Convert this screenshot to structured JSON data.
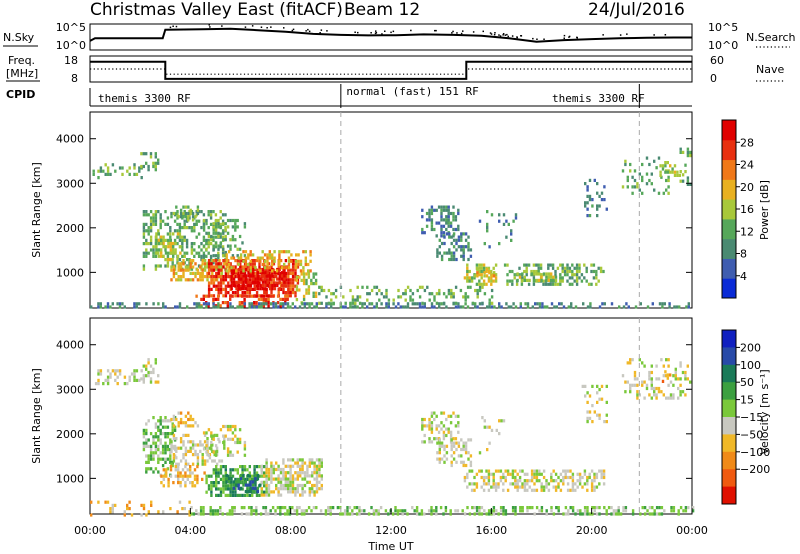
{
  "header": {
    "title": "Christmas Valley East (fitACF)",
    "beam": "Beam 12",
    "date": "24/Jul/2016"
  },
  "colors": {
    "power": [
      "#0a2bd6",
      "#3f5db0",
      "#4a8a72",
      "#56a75a",
      "#a8c83a",
      "#e8b020",
      "#f07818",
      "#e83010",
      "#e00000"
    ],
    "velocity": [
      "#e01000",
      "#f05a10",
      "#f08a18",
      "#f0b828",
      "#c8c8c0",
      "#7ac83a",
      "#3ca040",
      "#1a7a58",
      "#284aa8",
      "#1020c0"
    ]
  },
  "chart_data": [
    {
      "type": "line",
      "name": "N.Sky / N.Search",
      "left_label": "N.Sky",
      "right_label": "N.Search",
      "left_ticks": [
        "10^5",
        "10^0"
      ],
      "right_ticks": [
        "10^5",
        "10^0"
      ],
      "x": [
        0,
        0.2,
        2.9,
        3.0,
        4.5,
        5.6,
        6.7,
        7.8,
        8.9,
        10.0,
        11.1,
        12.2,
        13.3,
        14.5,
        15.6,
        16.7,
        17.8,
        18.9,
        20.0,
        21.1,
        22.2,
        23.3,
        24
      ],
      "values": [
        0.35,
        0.45,
        0.45,
        0.78,
        0.8,
        0.82,
        0.76,
        0.7,
        0.62,
        0.58,
        0.56,
        0.57,
        0.6,
        0.58,
        0.55,
        0.45,
        0.32,
        0.38,
        0.42,
        0.45,
        0.47,
        0.48,
        0.48
      ]
    },
    {
      "type": "line",
      "name": "Freq / Nave",
      "left_label_1": "Freq.",
      "left_label_2": "[MHz]",
      "right_label": "Nave",
      "left_ticks": [
        "18",
        "8"
      ],
      "right_ticks": [
        "60",
        "0"
      ],
      "freq_x": [
        0,
        3.0,
        3.0,
        15.0,
        15.0,
        24
      ],
      "freq_values": [
        0.78,
        0.78,
        0.12,
        0.12,
        0.78,
        0.78
      ],
      "nave_x": [
        0,
        3.0,
        3.0,
        15.0,
        15.0,
        24
      ],
      "nave_values": [
        0.5,
        0.5,
        0.3,
        0.3,
        0.5,
        0.5
      ]
    },
    {
      "type": "table",
      "name": "CPID",
      "label": "CPID",
      "segments": [
        {
          "start": 0,
          "end": 10,
          "text": "themis 3300 RF"
        },
        {
          "start": 10,
          "end": 21.9,
          "text": "normal (fast) 151 RF"
        },
        {
          "start": 21.9,
          "end": 24,
          "text": "themis 3300 RF"
        }
      ],
      "segment_text_starts": [
        0.2,
        10.1,
        18.3
      ]
    },
    {
      "type": "heatmap",
      "name": "power",
      "ylabel": "Slant Range [km]",
      "colorbar_label": "Power [dB]",
      "colorbar_ticks": [
        "4",
        "8",
        "12",
        "16",
        "20",
        "24",
        "28"
      ],
      "colorbar_tick_values": [
        4,
        8,
        12,
        16,
        20,
        24,
        28
      ],
      "colorbar_range": [
        0,
        32
      ],
      "ylim": [
        200,
        4600
      ],
      "yticks": [
        1000,
        2000,
        3000,
        4000
      ],
      "ytick_labels": [
        "1000",
        "2000",
        "3000",
        "4000"
      ],
      "xlim": [
        0,
        24
      ],
      "dashed_x": [
        10.0,
        21.9
      ],
      "regions": [
        {
          "t0": 0.1,
          "t1": 2.1,
          "r0": 3150,
          "r1": 3450,
          "c": 3,
          "d": 0.35
        },
        {
          "t0": 2.0,
          "t1": 2.7,
          "r0": 3150,
          "r1": 3700,
          "c": 3,
          "d": 0.5
        },
        {
          "t0": 2.1,
          "t1": 5.4,
          "r0": 1100,
          "r1": 2400,
          "c": 3,
          "d": 0.5
        },
        {
          "t0": 2.6,
          "t1": 3.6,
          "r0": 1300,
          "r1": 1900,
          "c": 4,
          "d": 0.6
        },
        {
          "t0": 3.2,
          "t1": 4.3,
          "r0": 2200,
          "r1": 2500,
          "c": 3,
          "d": 0.4
        },
        {
          "t0": 4.5,
          "t1": 6.2,
          "r0": 1400,
          "r1": 2200,
          "c": 3,
          "d": 0.4
        },
        {
          "t0": 3.2,
          "t1": 5.6,
          "r0": 800,
          "r1": 1300,
          "c": 5,
          "d": 0.6
        },
        {
          "t0": 4.7,
          "t1": 8.3,
          "r0": 500,
          "r1": 1300,
          "c": 7,
          "d": 0.85
        },
        {
          "t0": 5.6,
          "t1": 7.8,
          "r0": 600,
          "r1": 1100,
          "c": 8,
          "d": 0.8
        },
        {
          "t0": 5.4,
          "t1": 8.8,
          "r0": 1000,
          "r1": 1500,
          "c": 5,
          "d": 0.5
        },
        {
          "t0": 4.2,
          "t1": 8.0,
          "r0": 280,
          "r1": 500,
          "c": 7,
          "d": 0.55
        },
        {
          "t0": 8.2,
          "t1": 9.0,
          "r0": 300,
          "r1": 1000,
          "c": 4,
          "d": 0.35
        },
        {
          "t0": 0.0,
          "t1": 24.0,
          "r0": 210,
          "r1": 330,
          "c": 2,
          "d": 0.55
        },
        {
          "t0": 9.0,
          "t1": 16.0,
          "r0": 300,
          "r1": 700,
          "c": 3,
          "d": 0.3
        },
        {
          "t0": 13.2,
          "t1": 14.7,
          "r0": 1800,
          "r1": 2500,
          "c": 2,
          "d": 0.5
        },
        {
          "t0": 13.8,
          "t1": 15.2,
          "r0": 1300,
          "r1": 1900,
          "c": 2,
          "d": 0.45
        },
        {
          "t0": 14.9,
          "t1": 16.2,
          "r0": 700,
          "r1": 1200,
          "c": 4,
          "d": 0.6
        },
        {
          "t0": 15.3,
          "t1": 16.1,
          "r0": 900,
          "r1": 1100,
          "c": 5,
          "d": 0.6
        },
        {
          "t0": 16.5,
          "t1": 20.5,
          "r0": 700,
          "r1": 1200,
          "c": 3,
          "d": 0.55
        },
        {
          "t0": 17.0,
          "t1": 18.7,
          "r0": 800,
          "r1": 1000,
          "c": 4,
          "d": 0.5
        },
        {
          "t0": 15.5,
          "t1": 17.0,
          "r0": 1600,
          "r1": 2400,
          "c": 2,
          "d": 0.15
        },
        {
          "t0": 19.6,
          "t1": 20.6,
          "r0": 2300,
          "r1": 3100,
          "c": 2,
          "d": 0.2
        },
        {
          "t0": 21.2,
          "t1": 23.2,
          "r0": 2800,
          "r1": 3600,
          "c": 3,
          "d": 0.2
        },
        {
          "t0": 22.7,
          "t1": 23.5,
          "r0": 3200,
          "r1": 3500,
          "c": 4,
          "d": 0.5
        },
        {
          "t0": 23.5,
          "t1": 23.9,
          "r0": 3000,
          "r1": 3800,
          "c": 3,
          "d": 0.35
        }
      ]
    },
    {
      "type": "heatmap",
      "name": "velocity",
      "ylabel": "Slant Range [km]",
      "colorbar_label": "Velocity [m s⁻¹]",
      "colorbar_ticks": [
        "200",
        "100",
        "50",
        "15",
        "−15",
        "−50",
        "−100",
        "−200"
      ],
      "ylim": [
        200,
        4600
      ],
      "yticks": [
        1000,
        2000,
        3000,
        4000
      ],
      "ytick_labels": [
        "1000",
        "2000",
        "3000",
        "4000"
      ],
      "xlim": [
        0,
        24
      ],
      "xticks": [
        0,
        4,
        8,
        12,
        16,
        20,
        24
      ],
      "xtick_labels": [
        "00:00",
        "04:00",
        "08:00",
        "12:00",
        "16:00",
        "20:00",
        "00:00"
      ],
      "xlabel": "Time UT",
      "dashed_x": [
        10.0,
        21.9
      ],
      "regions": [
        {
          "t0": 0.1,
          "t1": 2.1,
          "r0": 3150,
          "r1": 3450,
          "c": 4,
          "d": 0.35
        },
        {
          "t0": 2.0,
          "t1": 2.7,
          "r0": 3150,
          "r1": 3700,
          "c": 4,
          "d": 0.45
        },
        {
          "t0": 2.1,
          "t1": 3.4,
          "r0": 1100,
          "r1": 2400,
          "c": 5,
          "d": 0.6
        },
        {
          "t0": 3.2,
          "t1": 5.4,
          "r0": 1300,
          "r1": 2000,
          "c": 4,
          "d": 0.5
        },
        {
          "t0": 3.2,
          "t1": 4.3,
          "r0": 2200,
          "r1": 2500,
          "c": 3,
          "d": 0.45
        },
        {
          "t0": 4.5,
          "t1": 6.2,
          "r0": 1500,
          "r1": 2200,
          "c": 4,
          "d": 0.35
        },
        {
          "t0": 2.8,
          "t1": 4.6,
          "r0": 800,
          "r1": 1300,
          "c": 3,
          "d": 0.45
        },
        {
          "t0": 4.6,
          "t1": 7.0,
          "r0": 650,
          "r1": 1300,
          "c": 6,
          "d": 0.75
        },
        {
          "t0": 5.4,
          "t1": 6.8,
          "r0": 700,
          "r1": 1100,
          "c": 7,
          "d": 0.6
        },
        {
          "t0": 6.8,
          "t1": 9.2,
          "r0": 600,
          "r1": 1450,
          "c": 4,
          "d": 0.75
        },
        {
          "t0": 0.0,
          "t1": 4.0,
          "r0": 210,
          "r1": 500,
          "c": 3,
          "d": 0.25
        },
        {
          "t0": 4.0,
          "t1": 24.0,
          "r0": 210,
          "r1": 380,
          "c": 5,
          "d": 0.55
        },
        {
          "t0": 13.2,
          "t1": 14.7,
          "r0": 1800,
          "r1": 2500,
          "c": 4,
          "d": 0.45
        },
        {
          "t0": 13.8,
          "t1": 15.2,
          "r0": 1300,
          "r1": 1900,
          "c": 4,
          "d": 0.45
        },
        {
          "t0": 14.9,
          "t1": 20.5,
          "r0": 700,
          "r1": 1200,
          "c": 4,
          "d": 0.6
        },
        {
          "t0": 15.5,
          "t1": 17.0,
          "r0": 1600,
          "r1": 2400,
          "c": 4,
          "d": 0.12
        },
        {
          "t0": 19.6,
          "t1": 20.6,
          "r0": 2300,
          "r1": 3100,
          "c": 4,
          "d": 0.2
        },
        {
          "t0": 21.2,
          "t1": 23.9,
          "r0": 2800,
          "r1": 3700,
          "c": 4,
          "d": 0.3
        },
        {
          "t0": 22.7,
          "t1": 23.1,
          "r0": 3200,
          "r1": 3500,
          "c": 2,
          "d": 0.3
        }
      ]
    }
  ]
}
